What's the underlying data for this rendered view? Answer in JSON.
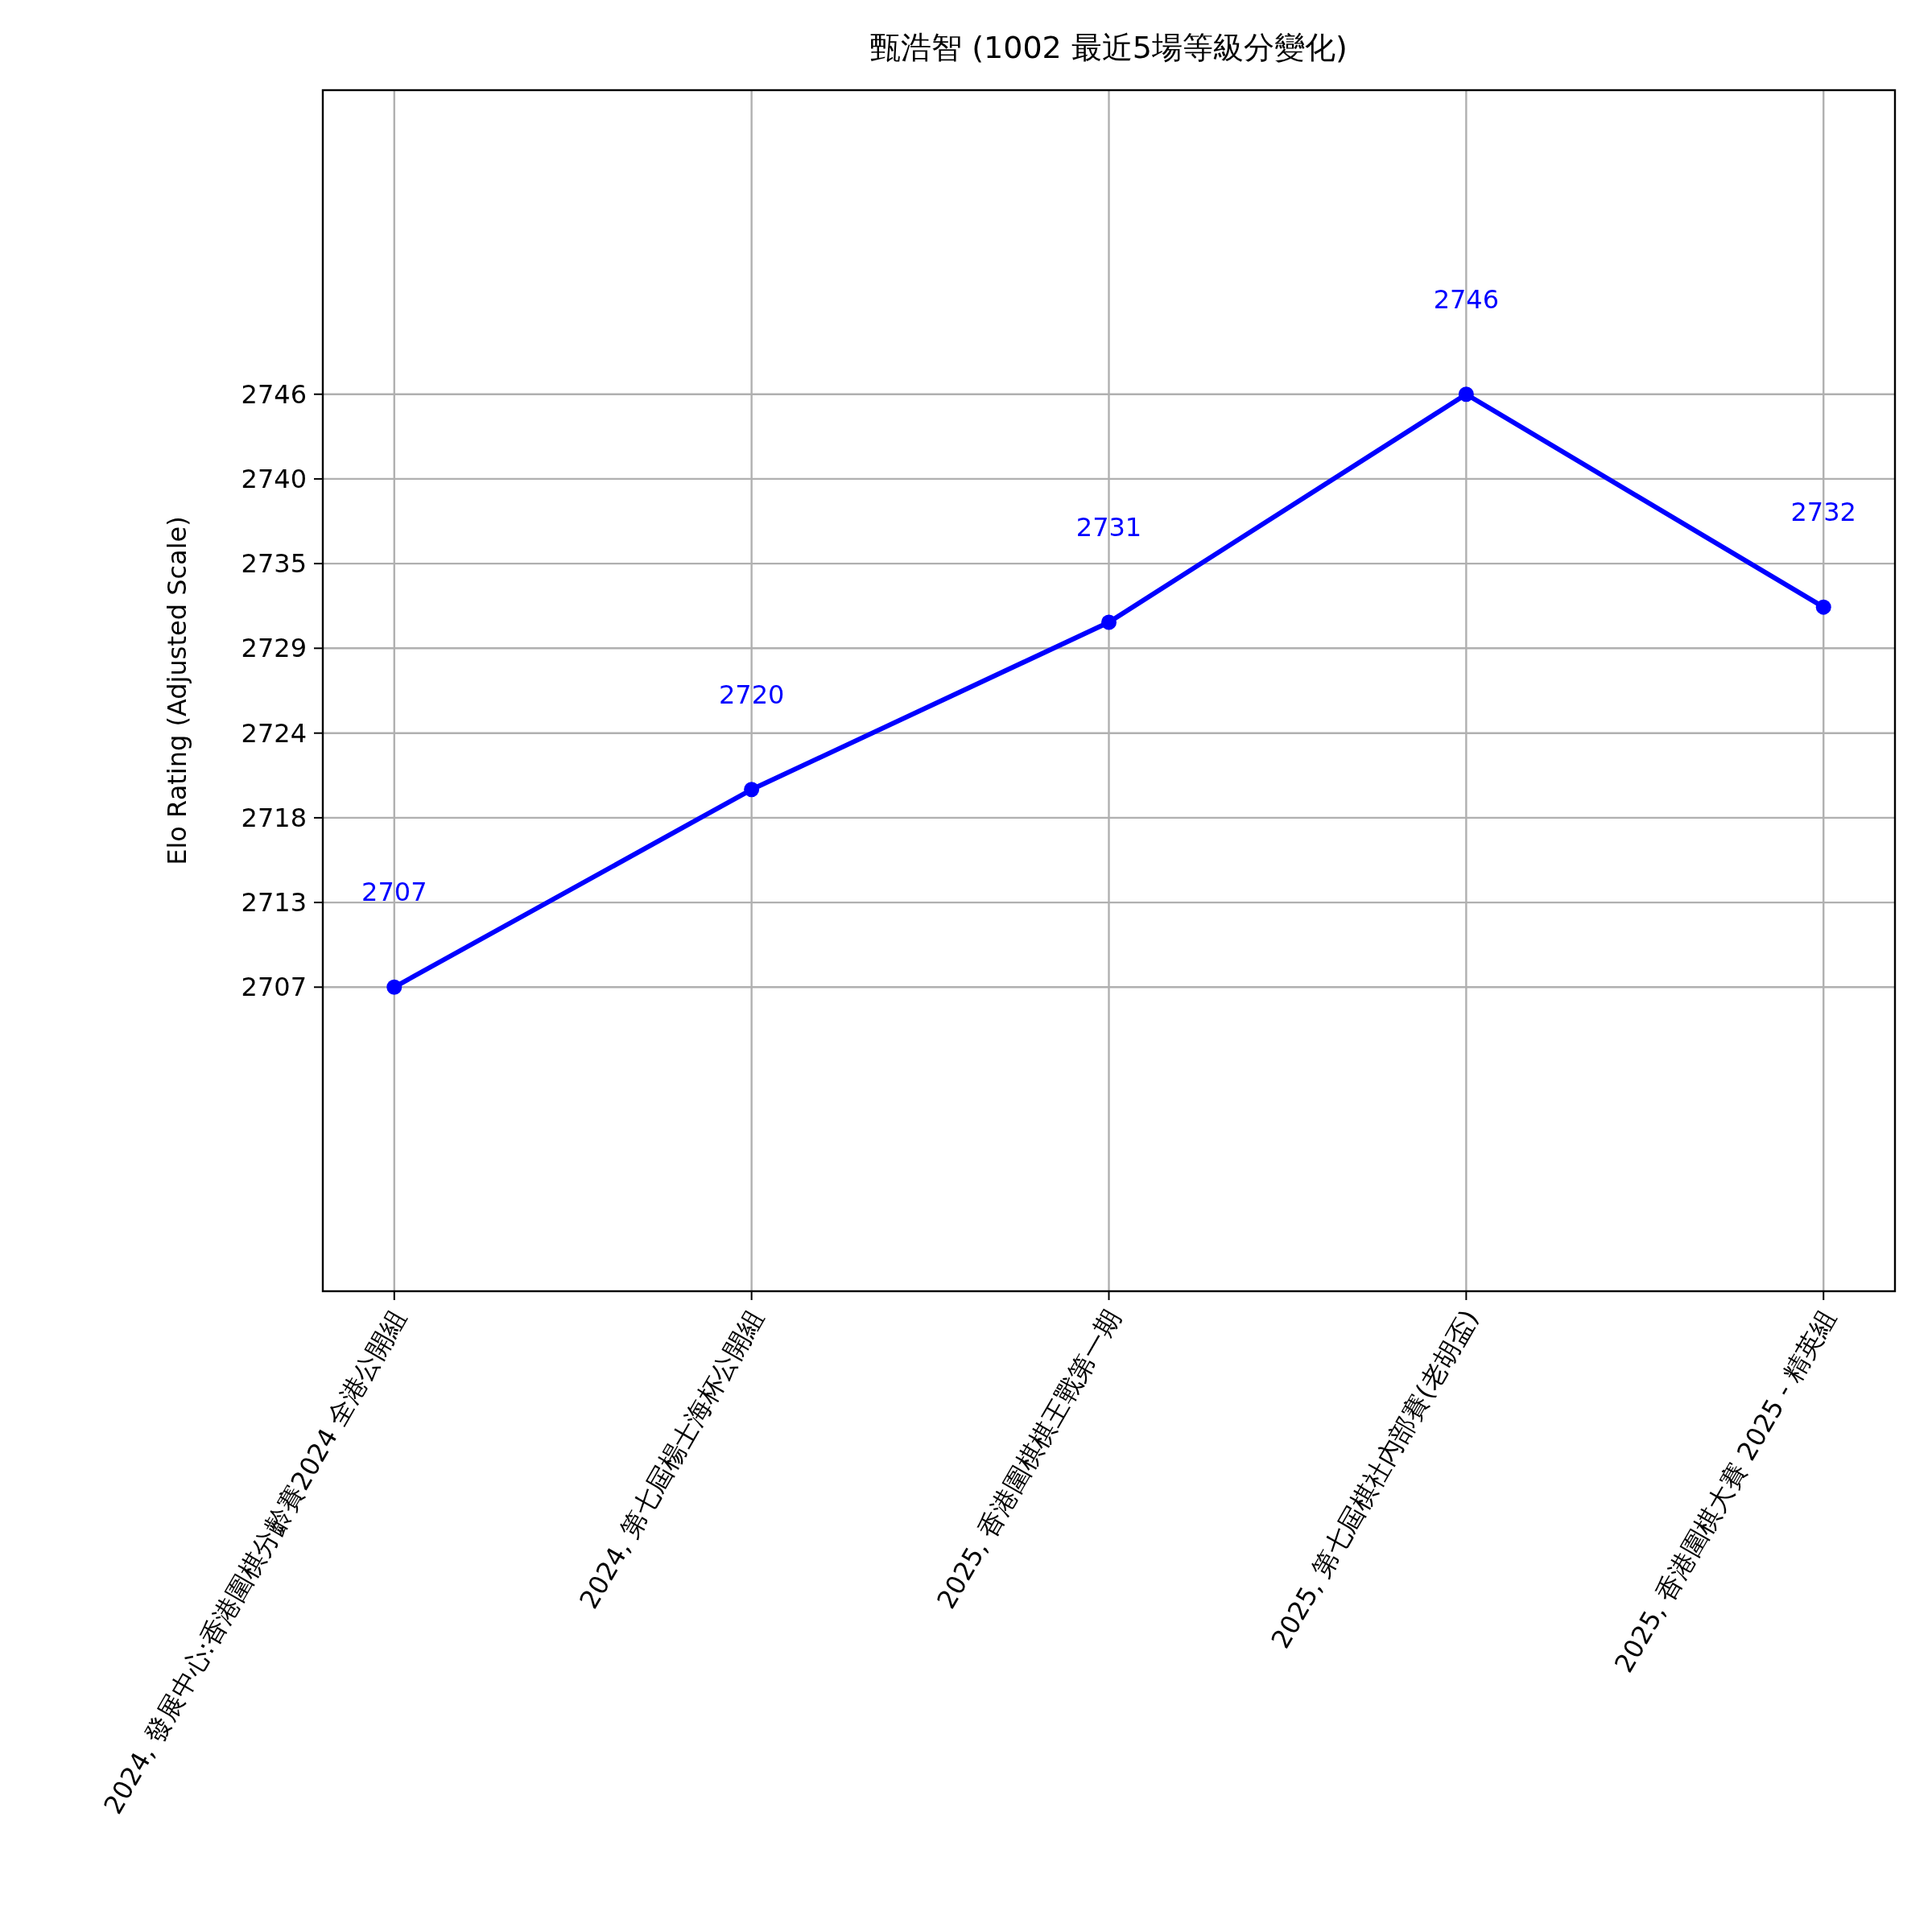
{
  "chart_data": {
    "type": "line",
    "title": "甄浩智 (1002 最近5場等級分變化)",
    "ylabel": "Elo Rating (Adjusted Scale)",
    "categories": [
      "2024, 發展中心:香港圍棋分齡賽2024 全港公開組",
      "2024, 第七屆楊士海杯公開組",
      "2025, 香港圍棋棋王戰第一期",
      "2025, 第七屆棋社內部賽(老胡盃)",
      "2025, 香港圍棋大賽 2025 - 精英組"
    ],
    "series": [
      {
        "color": "#0000ff",
        "values": [
          2707,
          2720,
          2731,
          2746,
          2732
        ]
      }
    ],
    "ylim": [
      2687,
      2766
    ],
    "yticks": [
      2707,
      {
        "value": 2712.57,
        "label": "2713"
      },
      {
        "value": 2718.14,
        "label": "2718"
      },
      {
        "value": 2723.71,
        "label": "2724"
      },
      {
        "value": 2729.29,
        "label": "2729"
      },
      {
        "value": 2734.86,
        "label": "2735"
      },
      {
        "value": 2740.43,
        "label": "2740"
      },
      2746
    ],
    "grid": true,
    "marker": "circle",
    "line_style": "solid",
    "data_labels": true
  }
}
